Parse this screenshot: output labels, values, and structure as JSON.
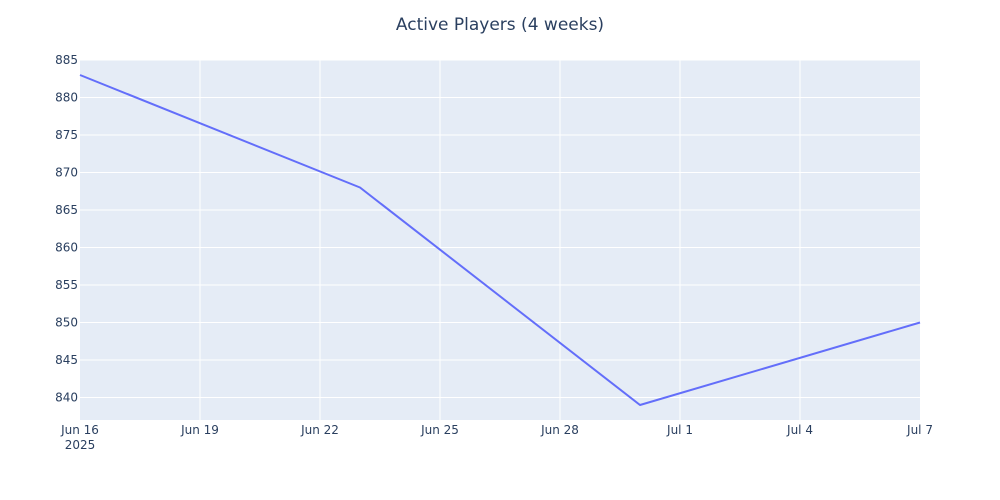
{
  "chart_data": {
    "type": "line",
    "title": "Active Players (4 weeks)",
    "xlabel": "",
    "ylabel": "",
    "x": [
      "2025-06-16",
      "2025-06-23",
      "2025-06-30",
      "2025-07-07"
    ],
    "series": [
      {
        "values": [
          883,
          868,
          839,
          850
        ]
      }
    ],
    "xlim": [
      "2025-06-16",
      "2025-07-07"
    ],
    "ylim": [
      837,
      885
    ],
    "x_ticks": [
      {
        "date": "2025-06-16",
        "label": "Jun 16",
        "sublabel": "2025"
      },
      {
        "date": "2025-06-19",
        "label": "Jun 19"
      },
      {
        "date": "2025-06-22",
        "label": "Jun 22"
      },
      {
        "date": "2025-06-25",
        "label": "Jun 25"
      },
      {
        "date": "2025-06-28",
        "label": "Jun 28"
      },
      {
        "date": "2025-07-01",
        "label": "Jul 1"
      },
      {
        "date": "2025-07-04",
        "label": "Jul 4"
      },
      {
        "date": "2025-07-07",
        "label": "Jul 7"
      }
    ],
    "y_ticks": [
      840,
      845,
      850,
      855,
      860,
      865,
      870,
      875,
      880,
      885
    ],
    "grid": true,
    "legend": "none",
    "colors": {
      "line": "#636efa",
      "plot_bg": "#e5ecf6",
      "grid": "#ffffff",
      "text": "#2a3f5f"
    }
  }
}
